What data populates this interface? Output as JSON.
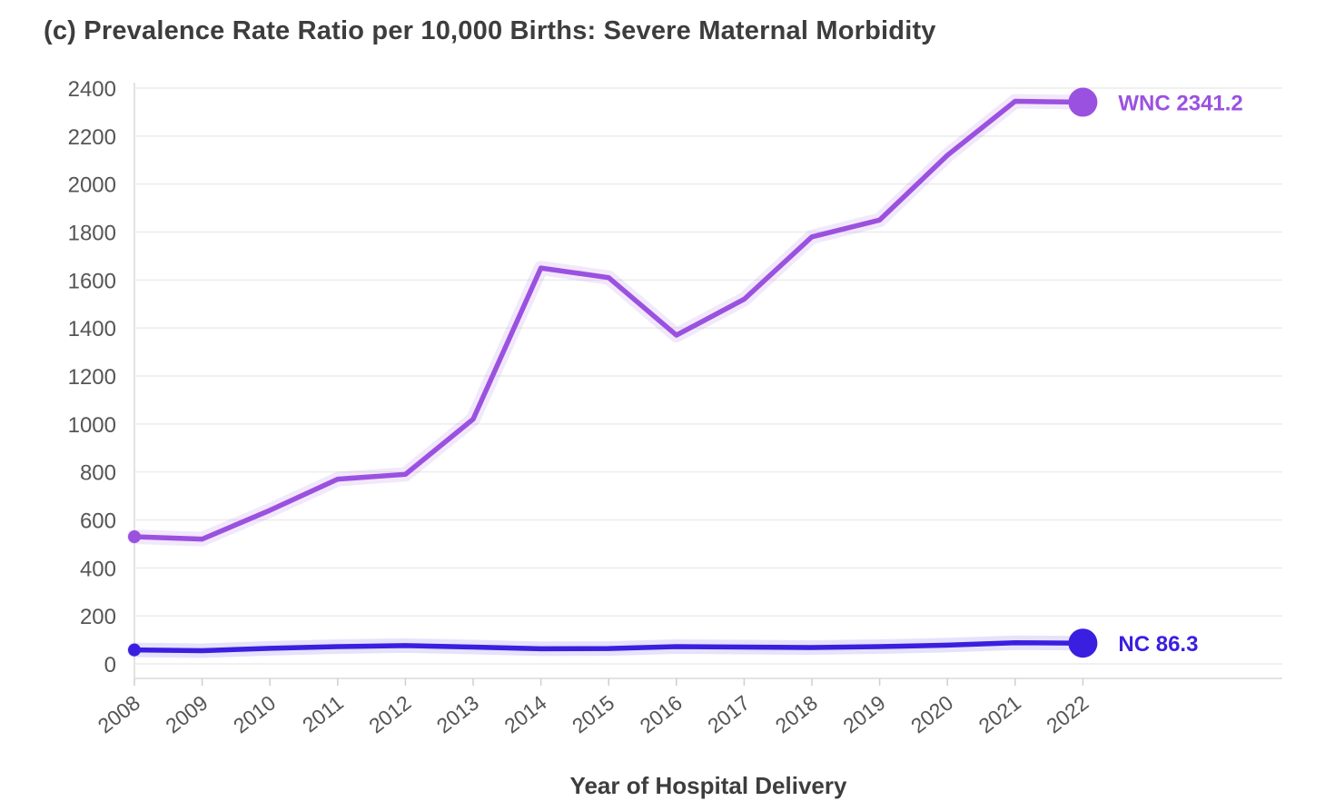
{
  "chart_data": {
    "type": "line",
    "title": "(c) Prevalence Rate Ratio per 10,000 Births: Severe Maternal Morbidity",
    "xlabel": "Year of Hospital Delivery",
    "ylabel": "",
    "categories": [
      "2008",
      "2009",
      "2010",
      "2011",
      "2012",
      "2013",
      "2014",
      "2015",
      "2016",
      "2017",
      "2018",
      "2019",
      "2020",
      "2021",
      "2022"
    ],
    "y_ticks": [
      0,
      200,
      400,
      600,
      800,
      1000,
      1200,
      1400,
      1600,
      1800,
      2000,
      2200,
      2400
    ],
    "ylim": [
      0,
      2400
    ],
    "grid": true,
    "series": [
      {
        "name": "WNC",
        "end_label": "WNC 2341.2",
        "color": "#9b51e0",
        "values": [
          530,
          520,
          640,
          770,
          790,
          1020,
          1650,
          1610,
          1370,
          1520,
          1780,
          1850,
          2120,
          2345,
          2341.2
        ]
      },
      {
        "name": "NC",
        "end_label": "NC 86.3",
        "color": "#3a1fe0",
        "values": [
          58,
          55,
          65,
          72,
          76,
          70,
          63,
          64,
          72,
          70,
          68,
          72,
          78,
          88,
          86.3
        ]
      }
    ]
  }
}
